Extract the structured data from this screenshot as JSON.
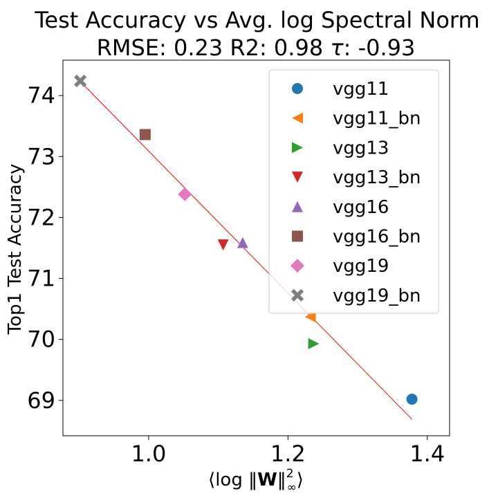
{
  "chart_data": {
    "type": "scatter",
    "title": "Test Accuracy vs Avg. log Spectral Norm",
    "subtitle_parts": {
      "rmse_label": "RMSE: 0.23",
      "r2_label": "R2: 0.98",
      "tau_symbol": "τ",
      "tau_value": ": -0.93"
    },
    "xlabel": "⟨log ‖W‖²∞⟩",
    "xlabel_parts": {
      "open": "⟨log ‖",
      "bold": "W",
      "close_bar": "‖",
      "sup": "2",
      "sub": "∞",
      "close": "⟩"
    },
    "ylabel": "Top1 Test Accuracy",
    "xlim": [
      0.877,
      1.432
    ],
    "ylim": [
      68.42,
      74.58
    ],
    "xticks": [
      1.0,
      1.2,
      1.4
    ],
    "xtick_labels": [
      "1.0",
      "1.2",
      "1.4"
    ],
    "yticks": [
      69,
      70,
      71,
      72,
      73,
      74
    ],
    "ytick_labels": [
      "69",
      "70",
      "71",
      "72",
      "73",
      "74"
    ],
    "grid": false,
    "legend_position": "top-right",
    "fit_line": {
      "color": "#ff0000",
      "x": [
        0.902,
        1.378
      ],
      "y": [
        74.23,
        68.69
      ]
    },
    "series": [
      {
        "name": "vgg11",
        "marker": "circle",
        "color": "#1f77b4",
        "x": [
          1.378
        ],
        "y": [
          69.02
        ]
      },
      {
        "name": "vgg11_bn",
        "marker": "triangle-left",
        "color": "#ff7f0e",
        "x": [
          1.232
        ],
        "y": [
          70.37
        ]
      },
      {
        "name": "vgg13",
        "marker": "triangle-right",
        "color": "#2ca02c",
        "x": [
          1.237
        ],
        "y": [
          69.93
        ]
      },
      {
        "name": "vgg13_bn",
        "marker": "triangle-down",
        "color": "#d62728",
        "x": [
          1.107
        ],
        "y": [
          71.55
        ]
      },
      {
        "name": "vgg16",
        "marker": "triangle-up",
        "color": "#9467bd",
        "x": [
          1.135
        ],
        "y": [
          71.59
        ]
      },
      {
        "name": "vgg16_bn",
        "marker": "square",
        "color": "#8c564b",
        "x": [
          0.995
        ],
        "y": [
          73.36
        ]
      },
      {
        "name": "vgg19",
        "marker": "diamond",
        "color": "#e377c2",
        "x": [
          1.052
        ],
        "y": [
          72.38
        ]
      },
      {
        "name": "vgg19_bn",
        "marker": "x",
        "color": "#7f7f7f",
        "x": [
          0.902
        ],
        "y": [
          74.24
        ]
      }
    ]
  }
}
